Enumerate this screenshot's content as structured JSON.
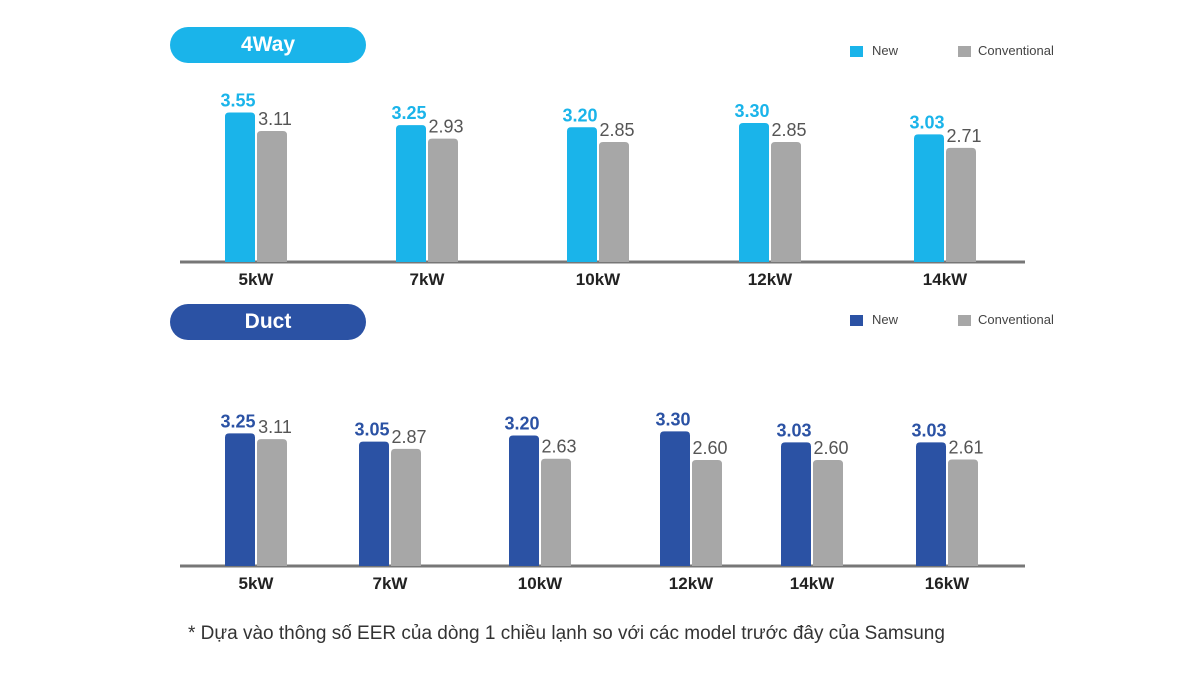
{
  "colors": {
    "new_4way": "#1ab4ea",
    "new_duct": "#2b52a4",
    "conventional": "#a7a7a7",
    "axis": "#777777",
    "label_conventional": "#555555",
    "tick_label": "#222222"
  },
  "footnote": "* Dựa vào thông số EER của dòng 1 chiều lạnh so với các model trước đây của Samsung",
  "chart_data": [
    {
      "type": "bar",
      "title": "4Way",
      "categories": [
        "5kW",
        "7kW",
        "10kW",
        "12kW",
        "14kW"
      ],
      "series": [
        {
          "name": "New",
          "values": [
            3.55,
            3.25,
            3.2,
            3.3,
            3.03
          ],
          "labels": [
            "3.55",
            "3.25",
            "3.20",
            "3.30",
            "3.03"
          ]
        },
        {
          "name": "Conventional",
          "values": [
            3.11,
            2.93,
            2.85,
            2.85,
            2.71
          ],
          "labels": [
            "3.11",
            "2.93",
            "2.85",
            "2.85",
            "2.71"
          ]
        }
      ],
      "ylim": [
        0,
        3.8
      ],
      "grid": false,
      "legend": "top-right"
    },
    {
      "type": "bar",
      "title": "Duct",
      "categories": [
        "5kW",
        "7kW",
        "10kW",
        "12kW",
        "14kW",
        "16kW"
      ],
      "series": [
        {
          "name": "New",
          "values": [
            3.25,
            3.05,
            3.2,
            3.3,
            3.03,
            3.03
          ],
          "labels": [
            "3.25",
            "3.05",
            "3.20",
            "3.30",
            "3.03",
            "3.03"
          ]
        },
        {
          "name": "Conventional",
          "values": [
            3.11,
            2.87,
            2.63,
            2.6,
            2.6,
            2.61
          ],
          "labels": [
            "3.11",
            "2.87",
            "2.63",
            "2.60",
            "2.60",
            "2.61"
          ]
        }
      ],
      "ylim": [
        0,
        3.8
      ],
      "grid": false,
      "legend": "top-right"
    }
  ]
}
